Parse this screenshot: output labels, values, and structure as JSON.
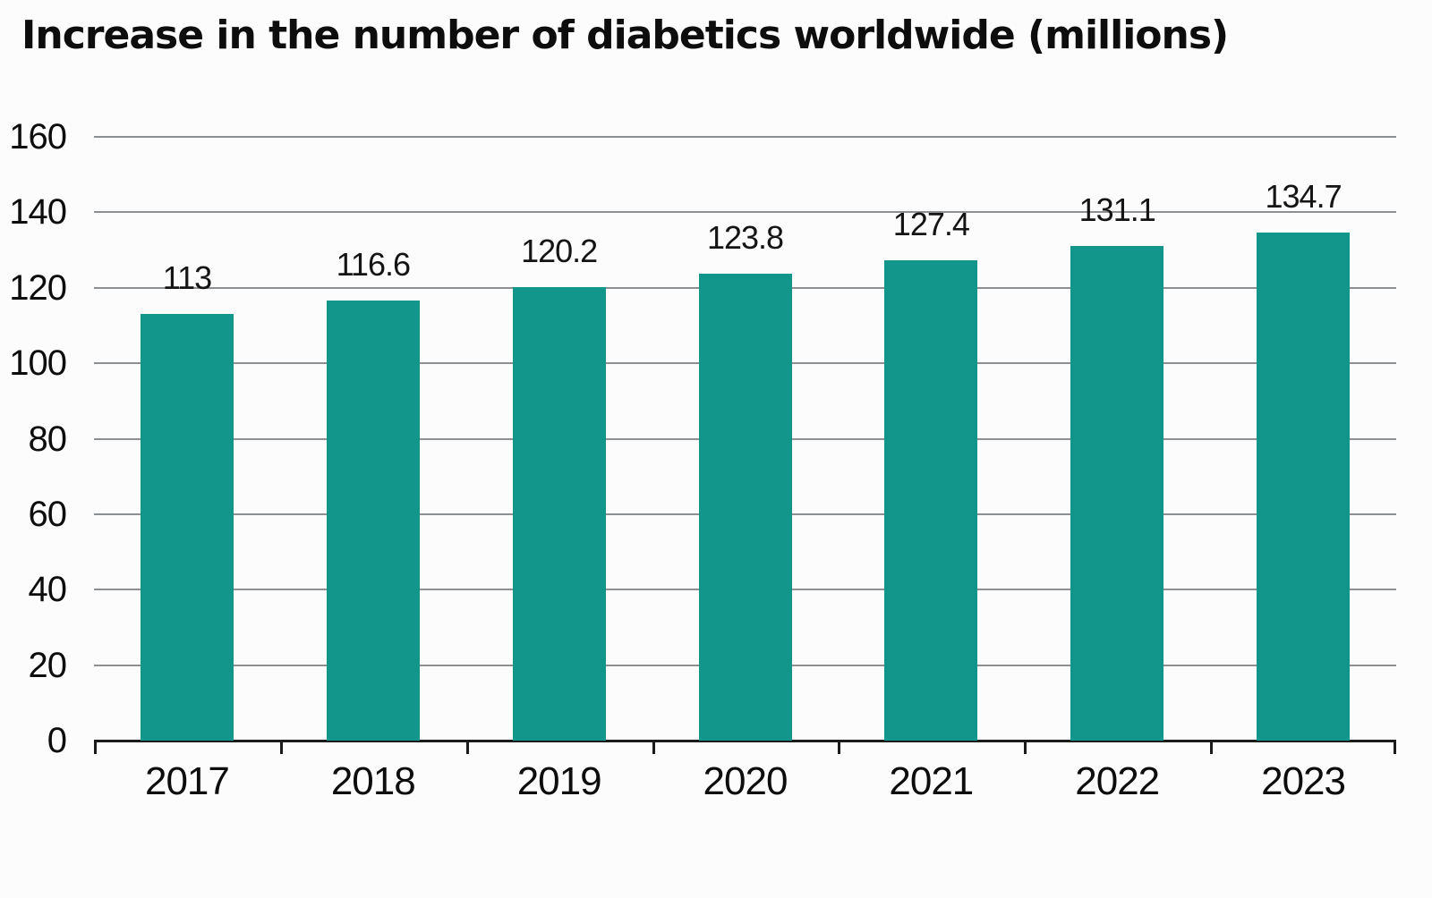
{
  "page": {
    "background": "#fcfcfc"
  },
  "chart_data": {
    "type": "bar",
    "title": "Increase in the number of diabetics worldwide (millions)",
    "categories": [
      "2017",
      "2018",
      "2019",
      "2020",
      "2021",
      "2022",
      "2023"
    ],
    "values": [
      113,
      116.6,
      120.2,
      123.8,
      127.4,
      131.1,
      134.7
    ],
    "value_labels": [
      "113",
      "116.6",
      "120.2",
      "123.8",
      "127.4",
      "131.1",
      "134.7"
    ],
    "xlabel": "",
    "ylabel": "",
    "ylim": [
      0,
      160
    ],
    "yticks": [
      0,
      20,
      40,
      60,
      80,
      100,
      120,
      140,
      160
    ],
    "grid": true,
    "legend": false,
    "bar_color": "#12968C",
    "gridline_color": "#8d9093",
    "axis_color": "#1b1b1b",
    "text_color": "#0d0d0d"
  }
}
